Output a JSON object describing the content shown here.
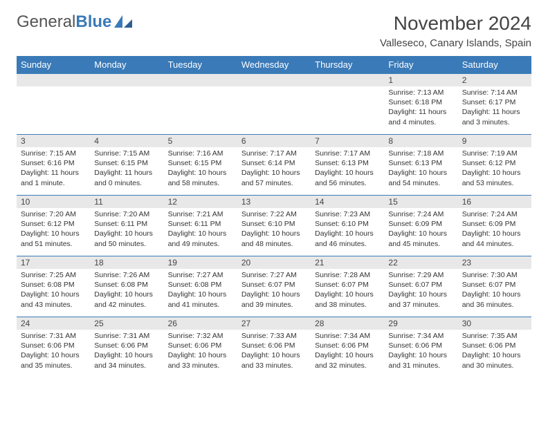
{
  "logo": {
    "text_gray": "General",
    "text_blue": "Blue"
  },
  "header": {
    "month_title": "November 2024",
    "location": "Valleseco, Canary Islands, Spain"
  },
  "colors": {
    "header_bg": "#3a7ab8",
    "header_fg": "#ffffff",
    "daynum_bg": "#e8e8e8",
    "border": "#3a7ab8",
    "text": "#333333"
  },
  "weekdays": [
    "Sunday",
    "Monday",
    "Tuesday",
    "Wednesday",
    "Thursday",
    "Friday",
    "Saturday"
  ],
  "weeks": [
    [
      {
        "day": "",
        "sunrise": "",
        "sunset": "",
        "daylight": ""
      },
      {
        "day": "",
        "sunrise": "",
        "sunset": "",
        "daylight": ""
      },
      {
        "day": "",
        "sunrise": "",
        "sunset": "",
        "daylight": ""
      },
      {
        "day": "",
        "sunrise": "",
        "sunset": "",
        "daylight": ""
      },
      {
        "day": "",
        "sunrise": "",
        "sunset": "",
        "daylight": ""
      },
      {
        "day": "1",
        "sunrise": "Sunrise: 7:13 AM",
        "sunset": "Sunset: 6:18 PM",
        "daylight": "Daylight: 11 hours and 4 minutes."
      },
      {
        "day": "2",
        "sunrise": "Sunrise: 7:14 AM",
        "sunset": "Sunset: 6:17 PM",
        "daylight": "Daylight: 11 hours and 3 minutes."
      }
    ],
    [
      {
        "day": "3",
        "sunrise": "Sunrise: 7:15 AM",
        "sunset": "Sunset: 6:16 PM",
        "daylight": "Daylight: 11 hours and 1 minute."
      },
      {
        "day": "4",
        "sunrise": "Sunrise: 7:15 AM",
        "sunset": "Sunset: 6:15 PM",
        "daylight": "Daylight: 11 hours and 0 minutes."
      },
      {
        "day": "5",
        "sunrise": "Sunrise: 7:16 AM",
        "sunset": "Sunset: 6:15 PM",
        "daylight": "Daylight: 10 hours and 58 minutes."
      },
      {
        "day": "6",
        "sunrise": "Sunrise: 7:17 AM",
        "sunset": "Sunset: 6:14 PM",
        "daylight": "Daylight: 10 hours and 57 minutes."
      },
      {
        "day": "7",
        "sunrise": "Sunrise: 7:17 AM",
        "sunset": "Sunset: 6:13 PM",
        "daylight": "Daylight: 10 hours and 56 minutes."
      },
      {
        "day": "8",
        "sunrise": "Sunrise: 7:18 AM",
        "sunset": "Sunset: 6:13 PM",
        "daylight": "Daylight: 10 hours and 54 minutes."
      },
      {
        "day": "9",
        "sunrise": "Sunrise: 7:19 AM",
        "sunset": "Sunset: 6:12 PM",
        "daylight": "Daylight: 10 hours and 53 minutes."
      }
    ],
    [
      {
        "day": "10",
        "sunrise": "Sunrise: 7:20 AM",
        "sunset": "Sunset: 6:12 PM",
        "daylight": "Daylight: 10 hours and 51 minutes."
      },
      {
        "day": "11",
        "sunrise": "Sunrise: 7:20 AM",
        "sunset": "Sunset: 6:11 PM",
        "daylight": "Daylight: 10 hours and 50 minutes."
      },
      {
        "day": "12",
        "sunrise": "Sunrise: 7:21 AM",
        "sunset": "Sunset: 6:11 PM",
        "daylight": "Daylight: 10 hours and 49 minutes."
      },
      {
        "day": "13",
        "sunrise": "Sunrise: 7:22 AM",
        "sunset": "Sunset: 6:10 PM",
        "daylight": "Daylight: 10 hours and 48 minutes."
      },
      {
        "day": "14",
        "sunrise": "Sunrise: 7:23 AM",
        "sunset": "Sunset: 6:10 PM",
        "daylight": "Daylight: 10 hours and 46 minutes."
      },
      {
        "day": "15",
        "sunrise": "Sunrise: 7:24 AM",
        "sunset": "Sunset: 6:09 PM",
        "daylight": "Daylight: 10 hours and 45 minutes."
      },
      {
        "day": "16",
        "sunrise": "Sunrise: 7:24 AM",
        "sunset": "Sunset: 6:09 PM",
        "daylight": "Daylight: 10 hours and 44 minutes."
      }
    ],
    [
      {
        "day": "17",
        "sunrise": "Sunrise: 7:25 AM",
        "sunset": "Sunset: 6:08 PM",
        "daylight": "Daylight: 10 hours and 43 minutes."
      },
      {
        "day": "18",
        "sunrise": "Sunrise: 7:26 AM",
        "sunset": "Sunset: 6:08 PM",
        "daylight": "Daylight: 10 hours and 42 minutes."
      },
      {
        "day": "19",
        "sunrise": "Sunrise: 7:27 AM",
        "sunset": "Sunset: 6:08 PM",
        "daylight": "Daylight: 10 hours and 41 minutes."
      },
      {
        "day": "20",
        "sunrise": "Sunrise: 7:27 AM",
        "sunset": "Sunset: 6:07 PM",
        "daylight": "Daylight: 10 hours and 39 minutes."
      },
      {
        "day": "21",
        "sunrise": "Sunrise: 7:28 AM",
        "sunset": "Sunset: 6:07 PM",
        "daylight": "Daylight: 10 hours and 38 minutes."
      },
      {
        "day": "22",
        "sunrise": "Sunrise: 7:29 AM",
        "sunset": "Sunset: 6:07 PM",
        "daylight": "Daylight: 10 hours and 37 minutes."
      },
      {
        "day": "23",
        "sunrise": "Sunrise: 7:30 AM",
        "sunset": "Sunset: 6:07 PM",
        "daylight": "Daylight: 10 hours and 36 minutes."
      }
    ],
    [
      {
        "day": "24",
        "sunrise": "Sunrise: 7:31 AM",
        "sunset": "Sunset: 6:06 PM",
        "daylight": "Daylight: 10 hours and 35 minutes."
      },
      {
        "day": "25",
        "sunrise": "Sunrise: 7:31 AM",
        "sunset": "Sunset: 6:06 PM",
        "daylight": "Daylight: 10 hours and 34 minutes."
      },
      {
        "day": "26",
        "sunrise": "Sunrise: 7:32 AM",
        "sunset": "Sunset: 6:06 PM",
        "daylight": "Daylight: 10 hours and 33 minutes."
      },
      {
        "day": "27",
        "sunrise": "Sunrise: 7:33 AM",
        "sunset": "Sunset: 6:06 PM",
        "daylight": "Daylight: 10 hours and 33 minutes."
      },
      {
        "day": "28",
        "sunrise": "Sunrise: 7:34 AM",
        "sunset": "Sunset: 6:06 PM",
        "daylight": "Daylight: 10 hours and 32 minutes."
      },
      {
        "day": "29",
        "sunrise": "Sunrise: 7:34 AM",
        "sunset": "Sunset: 6:06 PM",
        "daylight": "Daylight: 10 hours and 31 minutes."
      },
      {
        "day": "30",
        "sunrise": "Sunrise: 7:35 AM",
        "sunset": "Sunset: 6:06 PM",
        "daylight": "Daylight: 10 hours and 30 minutes."
      }
    ]
  ]
}
